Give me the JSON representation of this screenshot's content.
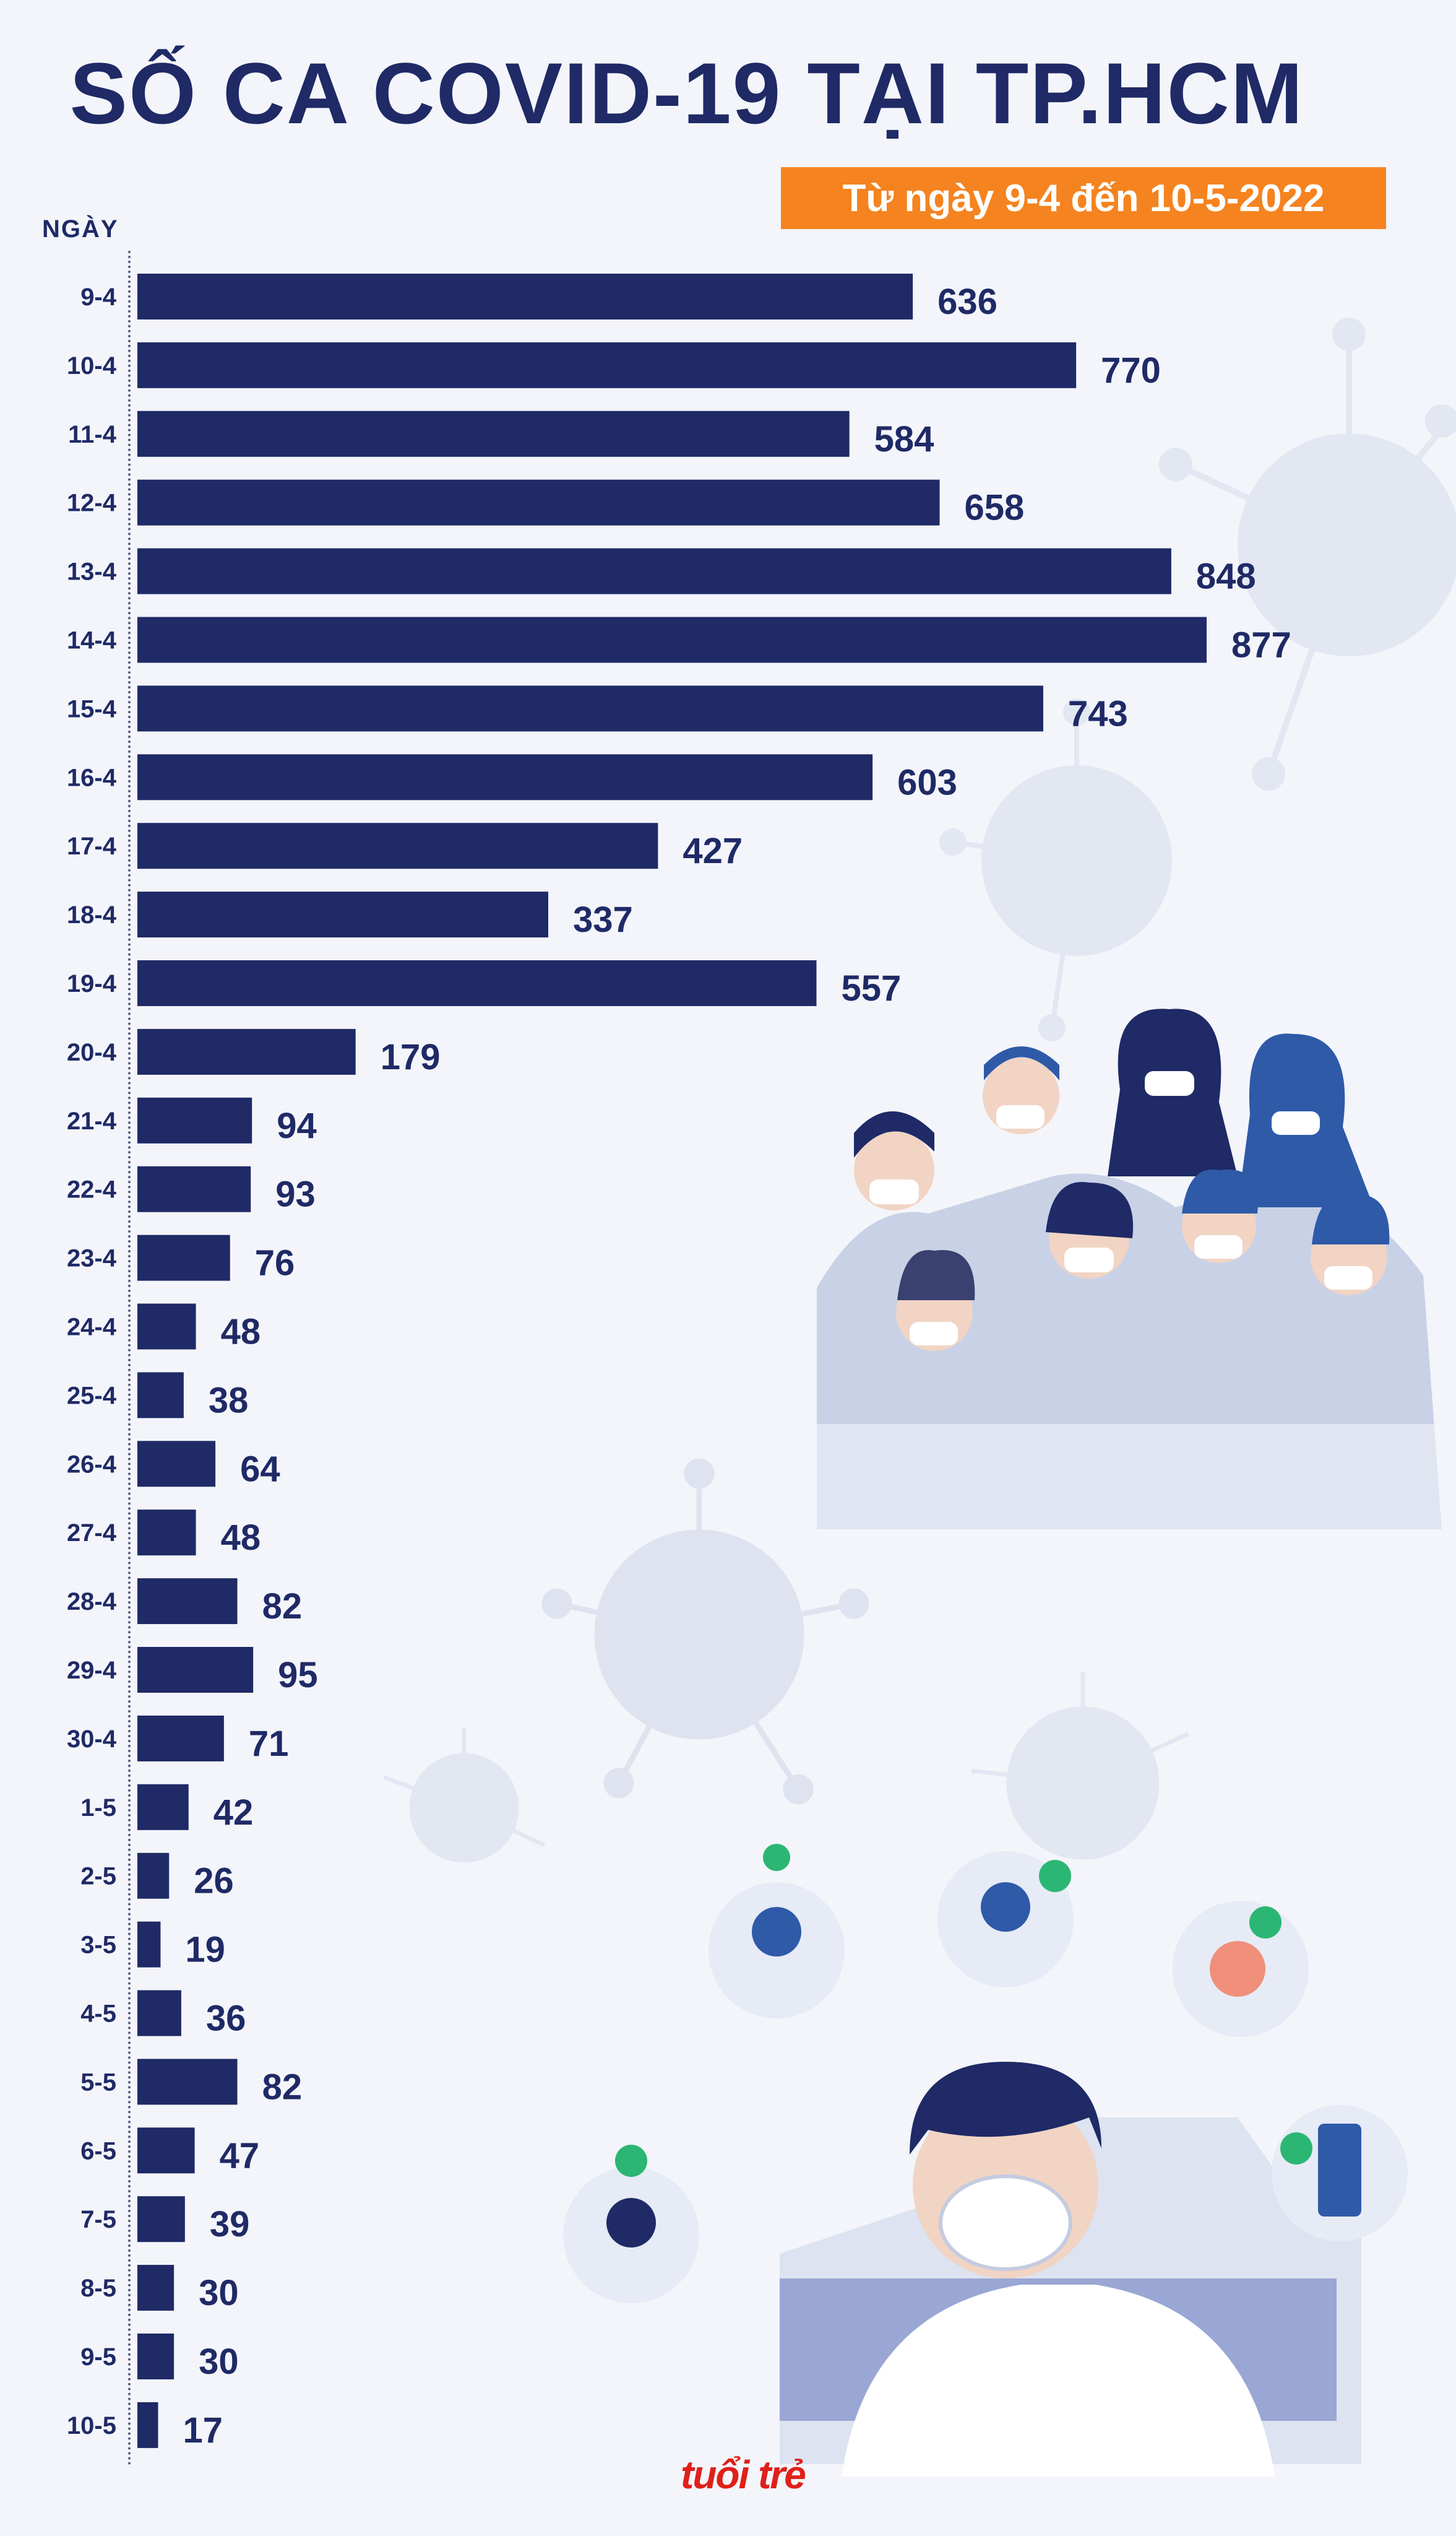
{
  "header": {
    "title": "SỐ CA COVID-19 TẠI TP.HCM",
    "subtitle": "Từ ngày 9-4 đến 10-5-2022"
  },
  "branding": {
    "logo_text": "tuổi trẻ"
  },
  "colors": {
    "bar": "#1f2a66",
    "accent": "#f5831f",
    "background": "#f3f5fa"
  },
  "chart_data": {
    "type": "bar",
    "orientation": "horizontal",
    "title": "SỐ CA COVID-19 TẠI TP.HCM",
    "subtitle": "Từ ngày 9-4 đến 10-5-2022",
    "ylabel": "NGÀY",
    "xlabel": "",
    "xlim": [
      0,
      877
    ],
    "grid": false,
    "categories": [
      "9-4",
      "10-4",
      "11-4",
      "12-4",
      "13-4",
      "14-4",
      "15-4",
      "16-4",
      "17-4",
      "18-4",
      "19-4",
      "20-4",
      "21-4",
      "22-4",
      "23-4",
      "24-4",
      "25-4",
      "26-4",
      "27-4",
      "28-4",
      "29-4",
      "30-4",
      "1-5",
      "2-5",
      "3-5",
      "4-5",
      "5-5",
      "6-5",
      "7-5",
      "8-5",
      "9-5",
      "10-5"
    ],
    "values": [
      636,
      770,
      584,
      658,
      848,
      877,
      743,
      603,
      427,
      337,
      557,
      179,
      94,
      93,
      76,
      48,
      38,
      64,
      48,
      82,
      95,
      71,
      42,
      26,
      19,
      36,
      82,
      47,
      39,
      30,
      30,
      17
    ]
  }
}
